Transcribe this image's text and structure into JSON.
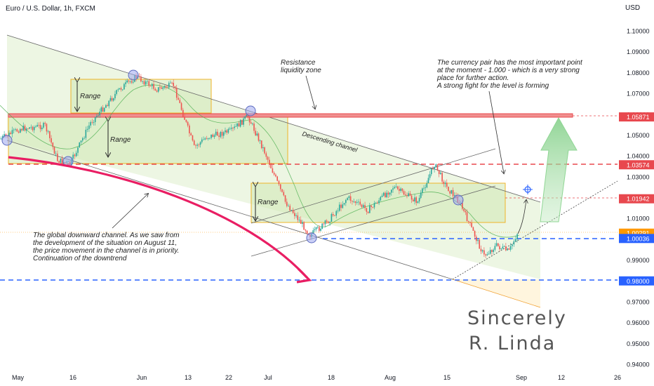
{
  "header": {
    "symbol_title": "Euro / U.S. Dollar, 1h, FXCM"
  },
  "colors": {
    "up": "#26a69a",
    "down": "#ef5350",
    "zone_fill": "#d7ecc2",
    "box_border": "#f0b429",
    "resistance": "#e8484e",
    "dashed_red": "#e8484e",
    "dashed_blue": "#2962ff",
    "arrow_magenta": "#e91e63",
    "arrow_green": "#8fd694",
    "price_orange": "#ff9800"
  },
  "chart_data": {
    "type": "candlestick",
    "title": "Euro / U.S. Dollar, 1h, FXCM",
    "ylabel": "USD",
    "ylim": [
      0.9345,
      1.1055
    ],
    "x_tick_labels": [
      "May",
      "16",
      "Jun",
      "13",
      "22",
      "Jul",
      "18",
      "Aug",
      "15",
      "Sep",
      "12",
      "26"
    ],
    "y_tick_labels": [
      "1.10000",
      "1.09000",
      "1.08000",
      "1.07000",
      "1.06000",
      "1.05000",
      "1.04000",
      "1.03000",
      "1.02000",
      "1.01000",
      "1.00000",
      "0.99000",
      "0.98000",
      "0.97000",
      "0.96000",
      "0.95000",
      "0.94000"
    ],
    "price_path": [
      {
        "date": "2022-04-28",
        "close": 1.048
      },
      {
        "date": "2022-05-03",
        "close": 1.053
      },
      {
        "date": "2022-05-09",
        "close": 1.0545
      },
      {
        "date": "2022-05-12",
        "close": 1.038
      },
      {
        "date": "2022-05-15",
        "close": 1.036
      },
      {
        "date": "2022-05-20",
        "close": 1.056
      },
      {
        "date": "2022-05-27",
        "close": 1.072
      },
      {
        "date": "2022-05-31",
        "close": 1.078
      },
      {
        "date": "2022-06-05",
        "close": 1.072
      },
      {
        "date": "2022-06-09",
        "close": 1.074
      },
      {
        "date": "2022-06-14",
        "close": 1.044
      },
      {
        "date": "2022-06-17",
        "close": 1.049
      },
      {
        "date": "2022-06-23",
        "close": 1.052
      },
      {
        "date": "2022-06-27",
        "close": 1.059
      },
      {
        "date": "2022-07-01",
        "close": 1.042
      },
      {
        "date": "2022-07-06",
        "close": 1.018
      },
      {
        "date": "2022-07-12",
        "close": 1.002
      },
      {
        "date": "2022-07-16",
        "close": 1.008
      },
      {
        "date": "2022-07-21",
        "close": 1.02
      },
      {
        "date": "2022-07-26",
        "close": 1.014
      },
      {
        "date": "2022-08-01",
        "close": 1.025
      },
      {
        "date": "2022-08-07",
        "close": 1.018
      },
      {
        "date": "2022-08-11",
        "close": 1.036
      },
      {
        "date": "2022-08-14",
        "close": 1.025
      },
      {
        "date": "2022-08-17",
        "close": 1.018
      },
      {
        "date": "2022-08-20",
        "close": 1.005
      },
      {
        "date": "2022-08-23",
        "close": 0.992
      },
      {
        "date": "2022-08-26",
        "close": 0.997
      },
      {
        "date": "2022-08-29",
        "close": 0.994
      },
      {
        "date": "2022-08-31",
        "close": 1.0029
      }
    ],
    "price_labels": [
      {
        "value": 1.05871,
        "text": "1.05871",
        "color": "red"
      },
      {
        "value": 1.03574,
        "text": "1.03574",
        "color": "red"
      },
      {
        "value": 1.01942,
        "text": "1.01942",
        "color": "red"
      },
      {
        "value": 1.00291,
        "text": "1.00291",
        "color": "orange"
      },
      {
        "value": 1.00036,
        "text": "1.00036",
        "color": "blue"
      },
      {
        "value": 0.98,
        "text": "0.98000",
        "color": "blue"
      }
    ],
    "horizontal_levels": [
      1.05871,
      1.03574,
      1.01942,
      1.00036,
      0.98
    ],
    "range_boxes": [
      {
        "from": "2022-05-12",
        "to": "2022-06-15",
        "low": 1.053,
        "high": 1.0745
      },
      {
        "from": "2022-04-28",
        "to": "2022-07-01",
        "low": 1.0357,
        "high": 1.057
      },
      {
        "from": "2022-07-01",
        "to": "2022-08-29",
        "low": 1.008,
        "high": 1.026
      }
    ],
    "grid": false
  },
  "annotations": {
    "range1": "Range",
    "range2": "Range",
    "range3": "Range",
    "resistance_label": "Resistance\nliquidity zone",
    "descending_channel": "Descending channel",
    "note_top": "The currency pair has the most important point\nat the moment - 1.000 - which is a very strong\nplace for further action.\nA strong fight for the level is forming",
    "note_bottom": "The global downward channel. As we saw from\nthe development of the situation on August 11,\nthe price movement in the channel is in priority.\nContinuation of the downtrend",
    "signature_line1": "Sincerely",
    "signature_line2": "R. Linda"
  },
  "axis": {
    "currency_label": "USD"
  }
}
